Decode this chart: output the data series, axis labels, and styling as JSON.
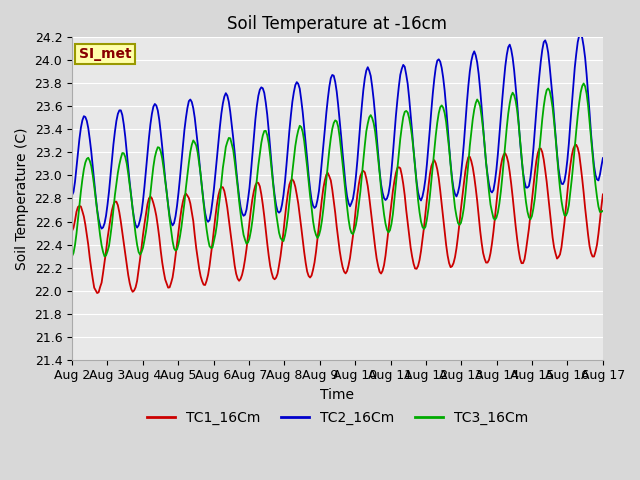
{
  "title": "Soil Temperature at -16cm",
  "ylabel": "Soil Temperature (C)",
  "xlabel": "Time",
  "ylim": [
    21.4,
    24.2
  ],
  "yticks": [
    21.4,
    21.6,
    21.8,
    22.0,
    22.2,
    22.4,
    22.6,
    22.8,
    23.0,
    23.2,
    23.4,
    23.6,
    23.8,
    24.0,
    24.2
  ],
  "x_tick_labels": [
    "Aug 2",
    "Aug 3",
    "Aug 4",
    "Aug 5",
    "Aug 6",
    "Aug 7",
    "Aug 8",
    "Aug 9",
    "Aug 10",
    "Aug 11",
    "Aug 12",
    "Aug 13",
    "Aug 14",
    "Aug 15",
    "Aug 16",
    "Aug 17"
  ],
  "line_colors": [
    "#cc0000",
    "#0000cc",
    "#00aa00"
  ],
  "line_labels": [
    "TC1_16Cm",
    "TC2_16Cm",
    "TC3_16Cm"
  ],
  "line_width": 1.3,
  "fig_bg_color": "#d8d8d8",
  "plot_bg_color": "#e8e8e8",
  "grid_color": "#ffffff",
  "title_fontsize": 12,
  "axis_label_fontsize": 10,
  "tick_fontsize": 9,
  "legend_fontsize": 10,
  "simet_box_facecolor": "#ffffaa",
  "simet_box_edgecolor": "#999900",
  "simet_text_color": "#880000",
  "simet_fontsize": 10
}
